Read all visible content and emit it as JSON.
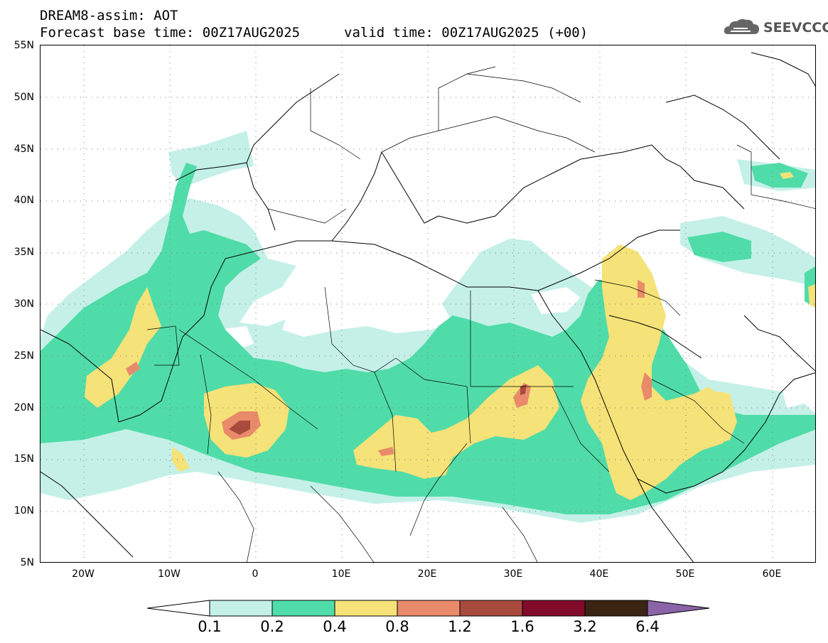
{
  "header": {
    "line1": "DREAM8-assim: AOT",
    "line2": "Forecast base time: 00Z17AUG2025",
    "line3": "valid time: 00Z17AUG2025 (+00)"
  },
  "logo": {
    "text": "SEEVCCC",
    "icon": "cloud-icon"
  },
  "map": {
    "lon_range": [
      -25,
      65
    ],
    "lat_range": [
      5,
      55
    ],
    "y_ticks": [
      "55N",
      "50N",
      "45N",
      "40N",
      "35N",
      "30N",
      "25N",
      "20N",
      "15N",
      "10N",
      "5N"
    ],
    "x_ticks": [
      "20W",
      "10W",
      "0",
      "10E",
      "20E",
      "30E",
      "40E",
      "50E",
      "60E"
    ],
    "grid": "dotted"
  },
  "legend": {
    "labels": [
      "0.1",
      "0.2",
      "0.4",
      "0.8",
      "1.2",
      "1.6",
      "3.2",
      "6.4"
    ],
    "colors": [
      "#c4f0e8",
      "#50dca8",
      "#f5e278",
      "#e98a6a",
      "#a84a3c",
      "#820a2a",
      "#3a2414",
      "#8a64a6"
    ]
  }
}
